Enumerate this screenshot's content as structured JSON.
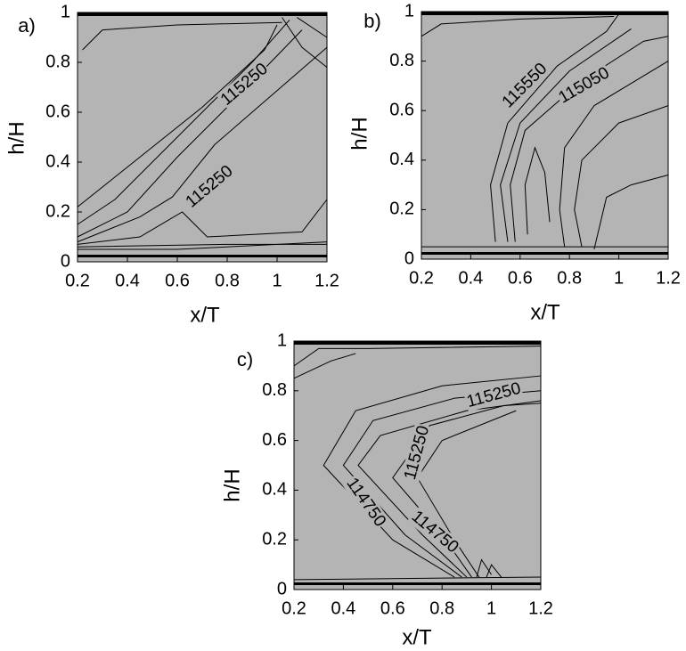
{
  "chart_data": [
    {
      "type": "contour",
      "title": "a)",
      "x_label": "x/T",
      "y_label": "h/H",
      "xlim": [
        0.2,
        1.2
      ],
      "ylim": [
        0,
        1
      ],
      "xticks": [
        0.2,
        0.4,
        0.6,
        0.8,
        1,
        1.2
      ],
      "yticks": [
        0,
        0.2,
        0.4,
        0.6,
        0.8,
        1
      ],
      "fill_color": "#b4b4b4",
      "contour_labels": [
        {
          "value": 115250,
          "x": 0.87,
          "y": 0.71
        },
        {
          "value": 115250,
          "x": 0.73,
          "y": 0.3
        }
      ]
    },
    {
      "type": "contour",
      "title": "b)",
      "x_label": "x/T",
      "y_label": "h/H",
      "xlim": [
        0.2,
        1.2
      ],
      "ylim": [
        0,
        1
      ],
      "xticks": [
        0.2,
        0.4,
        0.6,
        0.8,
        1,
        1.2
      ],
      "yticks": [
        0,
        0.2,
        0.4,
        0.6,
        0.8,
        1
      ],
      "fill_color": "#b4b4b4",
      "contour_labels": [
        {
          "value": 115550,
          "x": 0.62,
          "y": 0.7
        },
        {
          "value": 115050,
          "x": 0.86,
          "y": 0.7
        }
      ]
    },
    {
      "type": "contour",
      "title": "c)",
      "x_label": "x/T",
      "y_label": "h/H",
      "xlim": [
        0.2,
        1.2
      ],
      "ylim": [
        0,
        1
      ],
      "xticks": [
        0.2,
        0.4,
        0.6,
        0.8,
        1,
        1.2
      ],
      "yticks": [
        0,
        0.2,
        0.4,
        0.6,
        0.8,
        1
      ],
      "fill_color": "#b4b4b4",
      "contour_labels": [
        {
          "value": 115250,
          "x": 1.01,
          "y": 0.78
        },
        {
          "value": 115250,
          "x": 0.7,
          "y": 0.55
        },
        {
          "value": 114750,
          "x": 0.49,
          "y": 0.35
        },
        {
          "value": 114750,
          "x": 0.77,
          "y": 0.23
        }
      ]
    }
  ]
}
